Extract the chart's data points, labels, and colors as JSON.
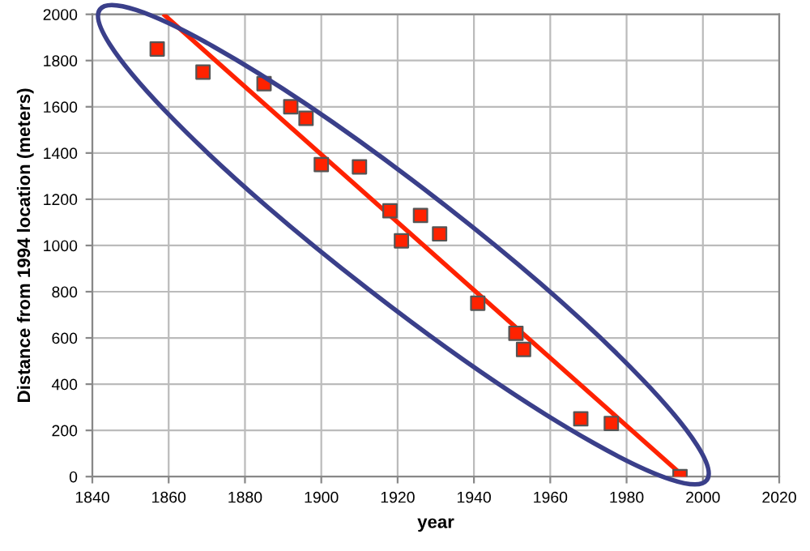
{
  "chart_data": {
    "type": "scatter",
    "xlabel": "year",
    "ylabel": "Distance from 1994 location (meters)",
    "series": [
      {
        "color": "#ff2200",
        "marker": "square",
        "x": [
          1857,
          1869,
          1885,
          1892,
          1896,
          1900,
          1910,
          1918,
          1921,
          1926,
          1931,
          1941,
          1951,
          1953,
          1968,
          1976,
          1994
        ],
        "values": [
          1850,
          1750,
          1700,
          1600,
          1550,
          1350,
          1340,
          1150,
          1020,
          1130,
          1050,
          750,
          620,
          550,
          250,
          230,
          0
        ]
      },
      {
        "type": "line",
        "color": "#ff2200",
        "marker": "none",
        "x": [
          1859,
          1995
        ],
        "values": [
          1995,
          0
        ]
      }
    ],
    "xlim": [
      1840,
      2020
    ],
    "xticks": [
      1840,
      1860,
      1880,
      1900,
      1920,
      1940,
      1960,
      1980,
      2000,
      2020
    ],
    "ylim": [
      0,
      2000
    ],
    "yticks": [
      0,
      200,
      400,
      600,
      800,
      1000,
      1200,
      1400,
      1600,
      1800,
      2000
    ],
    "grid": true,
    "legend": false
  }
}
